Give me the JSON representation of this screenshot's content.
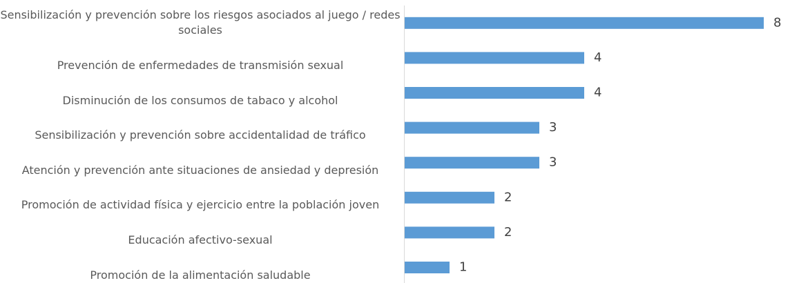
{
  "chart_data": {
    "type": "bar",
    "orientation": "horizontal",
    "categories": [
      "Sensibilización y prevención sobre los riesgos asociados al juego / redes sociales",
      "Prevención de enfermedades de transmisión sexual",
      "Disminución de los consumos de tabaco y alcohol",
      "Sensibilización y prevención sobre accidentalidad de tráfico",
      "Atención y prevención ante situaciones de ansiedad y depresión",
      "Promoción de actividad física y ejercicio entre la población joven",
      "Educación afectivo-sexual",
      "Promoción de la alimentación saludable"
    ],
    "values": [
      8,
      4,
      4,
      3,
      3,
      2,
      2,
      1
    ],
    "color": "#5b9bd5",
    "xlim": [
      0,
      8
    ]
  }
}
